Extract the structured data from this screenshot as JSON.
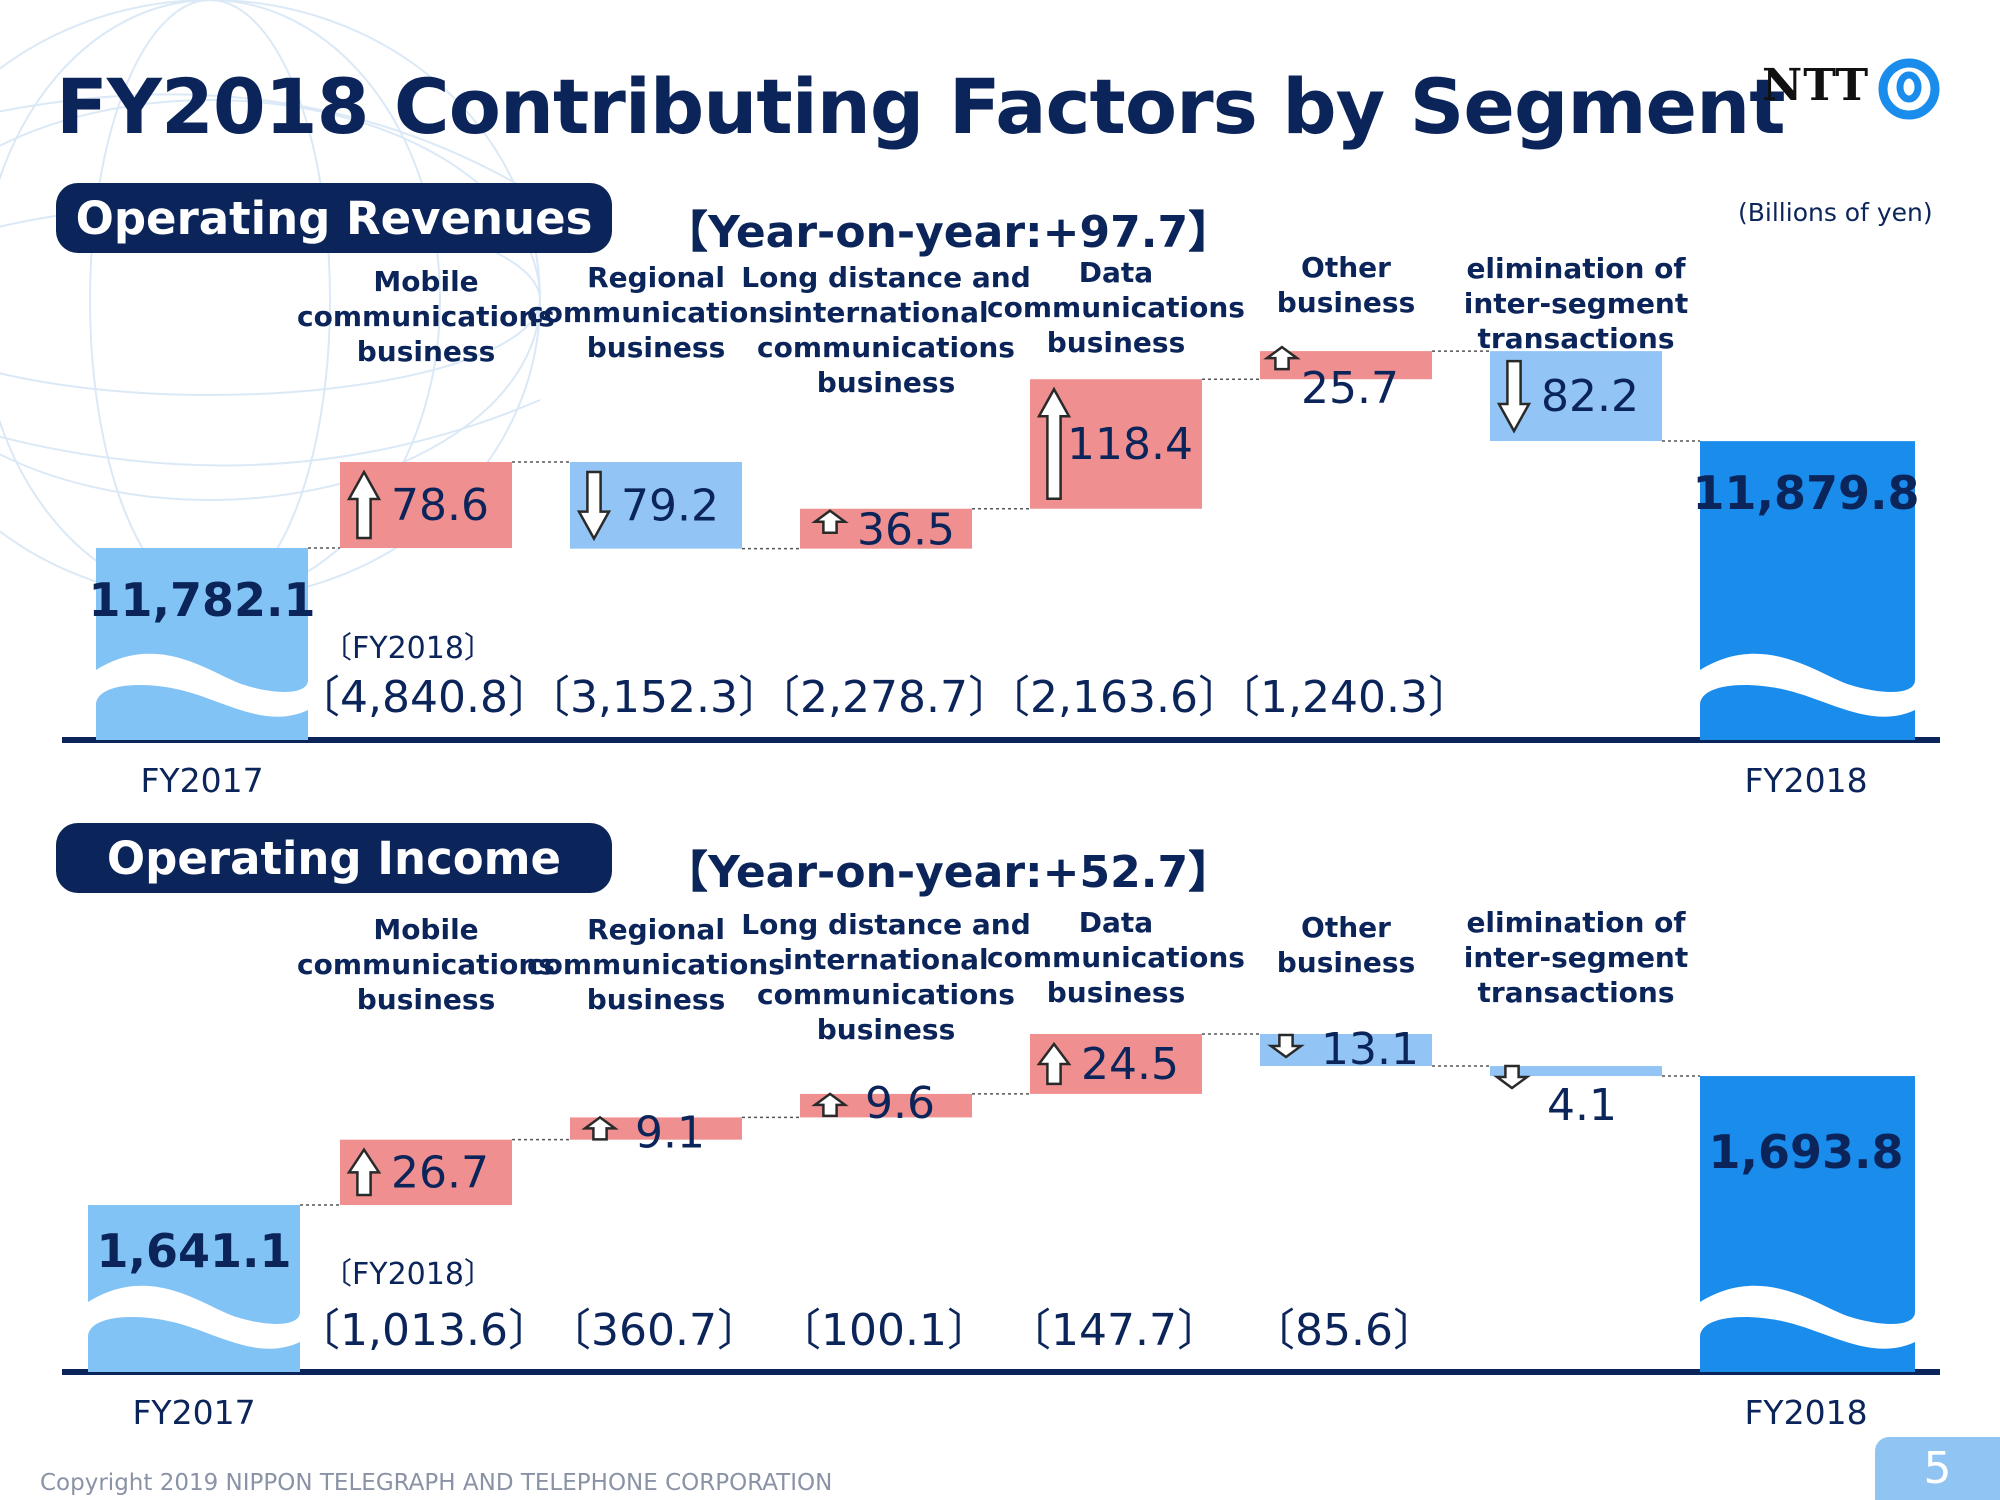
{
  "page": {
    "title": "FY2018 Contributing Factors by Segment",
    "logo_text": "NTT",
    "unit": "(Billions of yen)",
    "copyright": "Copyright 2019 NIPPON TELEGRAPH AND TELEPHONE CORPORATION",
    "page_number": "5",
    "colors": {
      "navy": "#0b2459",
      "increase": "#f08f8f",
      "decrease": "#92c5f5",
      "total_start": "#82c3f6",
      "total_end": "#1a8cec",
      "wave": "#ffffff"
    }
  },
  "revenues": {
    "heading": "Operating Revenues",
    "yoy": "【Year-on-year:+97.7】",
    "fy2018_label": "〔FY2018〕"
  },
  "income": {
    "heading": "Operating Income",
    "yoy": "【Year-on-year:+52.7】",
    "fy2018_label": "〔FY2018〕"
  },
  "chart_data": [
    {
      "type": "bar",
      "subtype": "waterfall",
      "title": "Operating Revenues",
      "unit": "(Billions of yen)",
      "start": {
        "label": "FY2017",
        "value": 11782.1,
        "text": "11,782.1"
      },
      "end": {
        "label": "FY2018",
        "value": 11879.8,
        "text": "11,879.8"
      },
      "steps": [
        {
          "category": [
            "Mobile",
            "communications",
            "business"
          ],
          "change": 78.6,
          "text": "78.6",
          "fy2018": "〔4,840.8〕"
        },
        {
          "category": [
            "Regional",
            "communications",
            "business"
          ],
          "change": -79.2,
          "text": "79.2",
          "fy2018": "〔3,152.3〕"
        },
        {
          "category": [
            "Long distance and",
            "international",
            "communications",
            "business"
          ],
          "change": 36.5,
          "text": "36.5",
          "fy2018": "〔2,278.7〕"
        },
        {
          "category": [
            "Data",
            "communications",
            "business"
          ],
          "change": 118.4,
          "text": "118.4",
          "fy2018": "〔2,163.6〕"
        },
        {
          "category": [
            "Other",
            "business"
          ],
          "change": 25.7,
          "text": "25.7",
          "fy2018": "〔1,240.3〕"
        },
        {
          "category": [
            "elimination of",
            "inter-segment",
            "transactions"
          ],
          "change": -82.2,
          "text": "82.2",
          "fy2018": ""
        }
      ]
    },
    {
      "type": "bar",
      "subtype": "waterfall",
      "title": "Operating Income",
      "unit": "(Billions of yen)",
      "start": {
        "label": "FY2017",
        "value": 1641.1,
        "text": "1,641.1"
      },
      "end": {
        "label": "FY2018",
        "value": 1693.8,
        "text": "1,693.8"
      },
      "steps": [
        {
          "category": [
            "Mobile",
            "communications",
            "business"
          ],
          "change": 26.7,
          "text": "26.7",
          "fy2018": "〔1,013.6〕"
        },
        {
          "category": [
            "Regional",
            "communications",
            "business"
          ],
          "change": 9.1,
          "text": "9.1",
          "fy2018": "〔360.7〕"
        },
        {
          "category": [
            "Long distance and",
            "international",
            "communications",
            "business"
          ],
          "change": 9.6,
          "text": "9.6",
          "fy2018": "〔100.1〕"
        },
        {
          "category": [
            "Data",
            "communications",
            "business"
          ],
          "change": 24.5,
          "text": "24.5",
          "fy2018": "〔147.7〕"
        },
        {
          "category": [
            "Other",
            "business"
          ],
          "change": -13.1,
          "text": "13.1",
          "fy2018": "〔85.6〕"
        },
        {
          "category": [
            "elimination of",
            "inter-segment",
            "transactions"
          ],
          "change": -4.1,
          "text": "4.1",
          "fy2018": ""
        }
      ]
    }
  ]
}
